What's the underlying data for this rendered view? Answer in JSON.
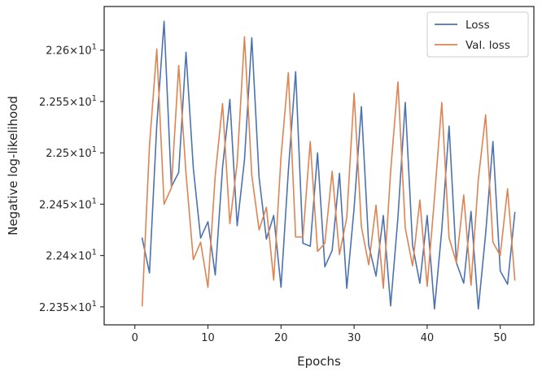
{
  "chart_data": {
    "type": "line",
    "xlabel": "Epochs",
    "ylabel": "Negative log-likelihood",
    "xlim": [
      -4.2,
      54.6
    ],
    "ylim": [
      22.3325,
      22.6425
    ],
    "xticks": [
      0,
      10,
      20,
      30,
      40,
      50
    ],
    "yticks": [
      {
        "value": 22.35,
        "label": "2.235 × 10¹"
      },
      {
        "value": 22.4,
        "label": "2.24 × 10¹"
      },
      {
        "value": 22.45,
        "label": "2.245 × 10¹"
      },
      {
        "value": 22.5,
        "label": "2.25 × 10¹"
      },
      {
        "value": 22.55,
        "label": "2.255 × 10¹"
      },
      {
        "value": 22.6,
        "label": "2.26 × 10¹"
      }
    ],
    "grid": false,
    "legend_position": "top-right",
    "x": [
      1,
      2,
      3,
      4,
      5,
      6,
      7,
      8,
      9,
      10,
      11,
      12,
      13,
      14,
      15,
      16,
      17,
      18,
      19,
      20,
      21,
      22,
      23,
      24,
      25,
      26,
      27,
      28,
      29,
      30,
      31,
      32,
      33,
      34,
      35,
      36,
      37,
      38,
      39,
      40,
      41,
      42,
      43,
      44,
      45,
      46,
      47,
      48,
      49,
      50,
      51,
      52
    ],
    "series": [
      {
        "name": "Loss",
        "color": "#4c72b0",
        "values": [
          22.417,
          22.383,
          22.527,
          22.628,
          22.467,
          22.481,
          22.598,
          22.485,
          22.417,
          22.433,
          22.381,
          22.486,
          22.552,
          22.429,
          22.493,
          22.612,
          22.476,
          22.416,
          22.439,
          22.369,
          22.482,
          22.579,
          22.412,
          22.409,
          22.5,
          22.389,
          22.405,
          22.48,
          22.368,
          22.446,
          22.545,
          22.41,
          22.38,
          22.439,
          22.351,
          22.437,
          22.549,
          22.41,
          22.373,
          22.439,
          22.348,
          22.425,
          22.526,
          22.393,
          22.373,
          22.443,
          22.348,
          22.421,
          22.511,
          22.385,
          22.372,
          22.442
        ]
      },
      {
        "name": "Val. loss",
        "color": "#dd8452",
        "values": [
          22.351,
          22.507,
          22.601,
          22.45,
          22.466,
          22.585,
          22.48,
          22.396,
          22.413,
          22.369,
          22.478,
          22.548,
          22.431,
          22.49,
          22.613,
          22.478,
          22.425,
          22.447,
          22.376,
          22.496,
          22.578,
          22.418,
          22.418,
          22.511,
          22.404,
          22.412,
          22.482,
          22.401,
          22.437,
          22.558,
          22.428,
          22.391,
          22.449,
          22.368,
          22.482,
          22.569,
          22.427,
          22.39,
          22.454,
          22.37,
          22.456,
          22.549,
          22.417,
          22.393,
          22.459,
          22.371,
          22.474,
          22.537,
          22.413,
          22.4,
          22.465,
          22.376
        ]
      }
    ]
  }
}
